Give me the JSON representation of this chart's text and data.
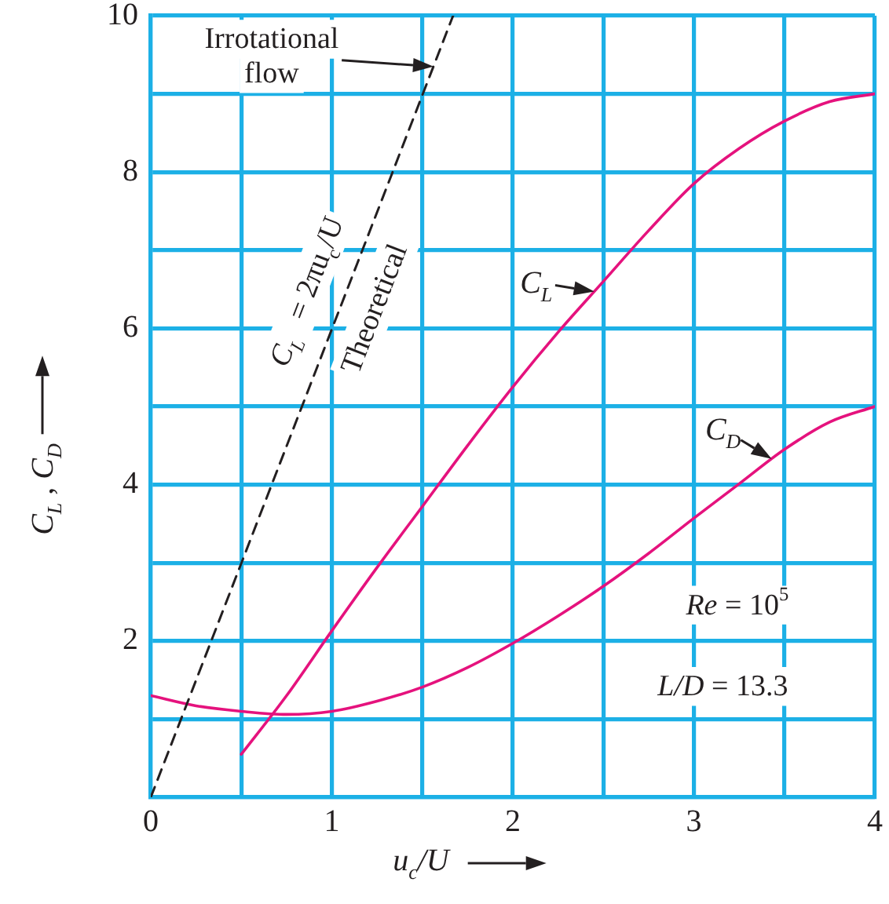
{
  "chart_data": {
    "type": "line",
    "xlabel": "u$_{c}$/U",
    "ylabel": "C$_{L}$ , C$_{D}$",
    "xlim": [
      0,
      4
    ],
    "ylim": [
      0,
      10
    ],
    "xticks": [
      0,
      {
        "value": 0.5,
        "label": null
      },
      1,
      {
        "value": 1.5,
        "label": null
      },
      2,
      {
        "value": 2.5,
        "label": null
      },
      3,
      {
        "value": 3.5,
        "label": null
      },
      4
    ],
    "yticks": [
      {
        "value": 0,
        "label": null
      },
      {
        "value": 1,
        "label": null
      },
      2,
      {
        "value": 3,
        "label": null
      },
      4,
      {
        "value": 5,
        "label": null
      },
      6,
      {
        "value": 7,
        "label": null
      },
      8,
      {
        "value": 9,
        "label": null
      },
      10
    ],
    "grid": true,
    "series": [
      {
        "name": "Theoretical",
        "color": "#231f20",
        "line_style": "dashed",
        "x": [
          0,
          1.67
        ],
        "values": [
          0,
          10
        ]
      },
      {
        "color": "#e5127d",
        "x": [
          0.5,
          0.75,
          1,
          1.25,
          1.5,
          1.75,
          2,
          2.25,
          2.5,
          2.75,
          3,
          3.25,
          3.5,
          3.75,
          4
        ],
        "values": [
          0.55,
          1.3,
          2.13,
          2.94,
          3.72,
          4.5,
          5.25,
          5.95,
          6.6,
          7.25,
          7.85,
          8.3,
          8.65,
          8.9,
          9
        ]
      },
      {
        "color": "#e5127d",
        "x": [
          0,
          0.25,
          0.5,
          0.75,
          1,
          1.25,
          1.5,
          1.75,
          2,
          2.25,
          2.5,
          2.75,
          3,
          3.25,
          3.5,
          3.75,
          4
        ],
        "values": [
          1.3,
          1.17,
          1.1,
          1.06,
          1.1,
          1.23,
          1.41,
          1.66,
          1.97,
          2.32,
          2.7,
          3.12,
          3.57,
          4.01,
          4.45,
          4.8,
          5
        ]
      }
    ],
    "annotations": [
      "Irrotational flow",
      "C$_{L}$ = 2πu$_{c}$/U",
      {
        "text": "C$_{L}$",
        "x": 2.45,
        "y": 6.47
      },
      {
        "text": "C$_{D}$",
        "x": 3.43,
        "y": 4.33
      },
      "Re = 10$^{5}$",
      "L/D = 13.3"
    ]
  }
}
